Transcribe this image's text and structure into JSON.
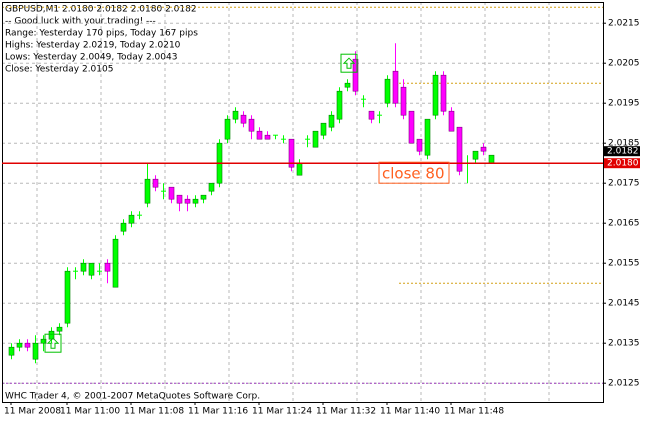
{
  "chart_data": {
    "type": "candlestick",
    "title": "GBPUSD,M1  2.0180 2.0182 2.0180 2.0182",
    "annotations": [
      "-- Good luck with your trading! ---",
      "Range: Yesterday 170 pips, Today 167 pips",
      "Highs: Yesterday 2.0219, Today 2.0210",
      "Lows: Yesterday 2.0049, Today 2.0043",
      "Close: Yesterday 2.0105"
    ],
    "footer": "WHC Trader 4, © 2001-2007 MetaQuotes Software Corp.",
    "trade_label": "close 80",
    "categories": [
      "11 Mar 2008",
      null,
      null,
      null,
      null,
      null,
      null,
      "11 Mar 11:00",
      null,
      null,
      null,
      null,
      null,
      null,
      null,
      "11 Mar 11:08",
      null,
      null,
      null,
      null,
      null,
      null,
      null,
      "11 Mar 11:16",
      null,
      null,
      null,
      null,
      null,
      null,
      null,
      "11 Mar 11:24",
      null,
      null,
      null,
      null,
      null,
      null,
      null,
      "11 Mar 11:32",
      null,
      null,
      null,
      null,
      null,
      null,
      null,
      "11 Mar 11:40",
      null,
      null,
      null,
      null,
      null,
      null,
      null,
      "11 Mar 11:48",
      null,
      null,
      null,
      null,
      null
    ],
    "open": [
      2.0132,
      2.0134,
      2.0135,
      2.0131,
      2.0135,
      2.0136,
      2.0138,
      2.014,
      2.0153,
      2.0153,
      2.0152,
      2.0153,
      2.0155,
      2.0149,
      2.0163,
      2.0165,
      2.0167,
      2.017,
      2.0176,
      2.0173,
      2.0174,
      2.0172,
      2.0171,
      2.017,
      2.0171,
      2.0173,
      2.0175,
      2.0186,
      2.0191,
      2.0192,
      2.0191,
      2.0188,
      2.0187,
      2.0187,
      2.0186,
      2.0186,
      2.0177,
      2.0186,
      2.0184,
      2.0187,
      2.0189,
      2.0191,
      2.0199,
      2.0206,
      2.0196,
      2.0193,
      2.0192,
      2.0195,
      2.0203,
      2.0199,
      2.0193,
      2.0186,
      2.0182,
      2.0192,
      2.0202,
      2.0193,
      2.0189,
      2.018,
      2.0181,
      2.0184,
      2.018
    ],
    "high": [
      2.0135,
      2.0136,
      2.0136,
      2.0137,
      2.0137,
      2.0139,
      2.014,
      2.0154,
      2.0154,
      2.0156,
      2.0155,
      2.0155,
      2.0156,
      2.0162,
      2.0166,
      2.0168,
      2.0168,
      2.018,
      2.0177,
      2.0175,
      2.0174,
      2.0172,
      2.0172,
      2.0172,
      2.0172,
      2.0175,
      2.0186,
      2.0192,
      2.0194,
      2.0193,
      2.0192,
      2.0189,
      2.0188,
      2.0187,
      2.0187,
      2.0186,
      2.0181,
      2.0187,
      2.0188,
      2.019,
      2.0193,
      2.0199,
      2.0201,
      2.0208,
      2.0197,
      2.0193,
      2.0193,
      2.0202,
      2.021,
      2.0201,
      2.0193,
      2.0186,
      2.0191,
      2.0203,
      2.0203,
      2.0194,
      2.0189,
      2.0182,
      2.0183,
      2.0185,
      2.0182
    ],
    "low": [
      2.0131,
      2.0133,
      2.0133,
      2.013,
      2.0133,
      2.0135,
      2.0137,
      2.0139,
      2.0151,
      2.0152,
      2.0151,
      2.0152,
      2.015,
      2.0149,
      2.0162,
      2.0164,
      2.0166,
      2.0169,
      2.0173,
      2.0171,
      2.017,
      2.0168,
      2.0168,
      2.0169,
      2.017,
      2.0172,
      2.0174,
      2.0185,
      2.019,
      2.0189,
      2.0186,
      2.0186,
      2.0186,
      2.0186,
      2.0185,
      2.0178,
      2.0177,
      2.0184,
      2.0184,
      2.0186,
      2.0188,
      2.019,
      2.0198,
      2.0197,
      2.0194,
      2.019,
      2.019,
      2.0194,
      2.0194,
      2.0191,
      2.0185,
      2.0182,
      2.0181,
      2.0191,
      2.0192,
      2.0188,
      2.0177,
      2.0175,
      2.018,
      2.0182,
      2.018
    ],
    "close": [
      2.0134,
      2.0135,
      2.0134,
      2.0135,
      2.0136,
      2.0138,
      2.0139,
      2.0153,
      2.0153,
      2.0155,
      2.0155,
      2.0153,
      2.0153,
      2.0161,
      2.0165,
      2.0167,
      2.0167,
      2.0176,
      2.0174,
      2.0173,
      2.0171,
      2.017,
      2.017,
      2.0171,
      2.0172,
      2.0175,
      2.0185,
      2.0191,
      2.0193,
      2.019,
      2.0188,
      2.0186,
      2.0186,
      2.0187,
      2.0186,
      2.0179,
      2.018,
      2.0186,
      2.0188,
      2.019,
      2.0192,
      2.0198,
      2.02,
      2.0198,
      2.0196,
      2.0191,
      2.0192,
      2.0201,
      2.0195,
      2.0192,
      2.0185,
      2.0183,
      2.0191,
      2.0202,
      2.0193,
      2.0188,
      2.0178,
      2.018,
      2.0183,
      2.0183,
      2.0182
    ],
    "up_color": "#00ff00",
    "up_outline": "#008000",
    "down_color": "#ff00ff",
    "down_outline": "#800080",
    "ylim": [
      2.01203,
      2.02203
    ],
    "yticks": [
      2.0125,
      2.0135,
      2.0145,
      2.0155,
      2.0165,
      2.0175,
      2.0185,
      2.0195,
      2.0205,
      2.0215
    ],
    "price_labels": [
      {
        "value": 2.0182,
        "label": "2.0182",
        "color": "#000000"
      },
      {
        "value": 2.018,
        "label": "2.0180",
        "color": "#e00000"
      }
    ],
    "levels": [
      {
        "value": 2.0219,
        "color": "#d4a017"
      },
      {
        "value": 2.02,
        "color": "#d4a017",
        "start": 49
      },
      {
        "value": 2.015,
        "color": "#d4a017",
        "start": 49
      },
      {
        "value": 2.0125,
        "color": "#a040c0"
      }
    ],
    "markers": [
      {
        "index": 6,
        "value": 2.0135
      },
      {
        "index": 43,
        "value": 2.0205
      }
    ],
    "grid": true
  }
}
